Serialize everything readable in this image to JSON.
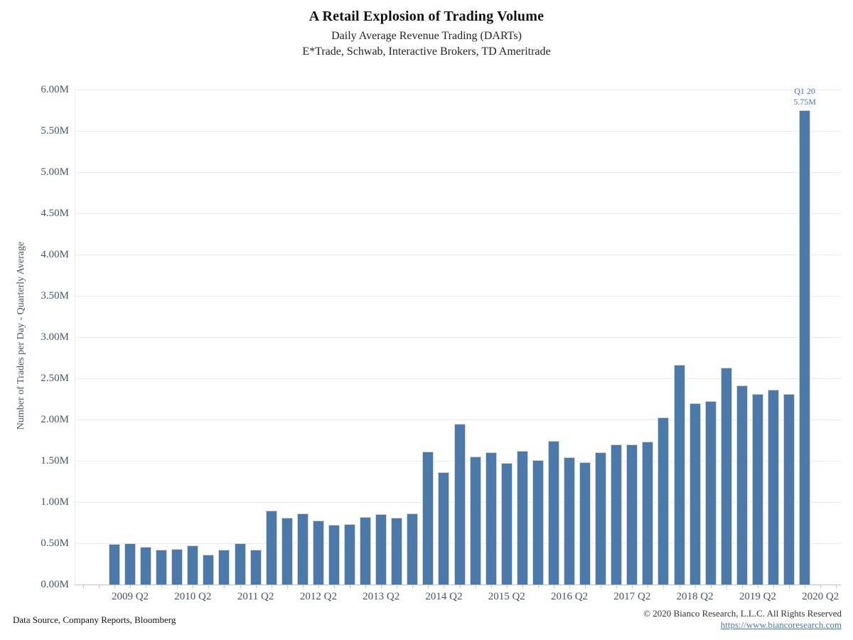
{
  "header": {
    "title": "A Retail Explosion of Trading Volume",
    "subtitle1": "Daily Average Revenue Trading (DARTs)",
    "subtitle2": "E*Trade, Schwab, Interactive Brokers, TD Ameritrade"
  },
  "chart_data": {
    "type": "bar",
    "title": "A Retail Explosion of Trading Volume",
    "xlabel": "",
    "ylabel": "Number of Trades per Day - Quarterly Average",
    "ylim": [
      0,
      6
    ],
    "ytick_step": 0.5,
    "unit": "M",
    "grid": true,
    "bar_color": "#4b79a9",
    "bar_border_color": "#d6d6d6",
    "x": [
      "2009 Q1",
      "2009 Q2",
      "2009 Q3",
      "2009 Q4",
      "2010 Q1",
      "2010 Q2",
      "2010 Q3",
      "2010 Q4",
      "2011 Q1",
      "2011 Q2",
      "2011 Q3",
      "2011 Q4",
      "2012 Q1",
      "2012 Q2",
      "2012 Q3",
      "2012 Q4",
      "2013 Q1",
      "2013 Q2",
      "2013 Q3",
      "2013 Q4",
      "2014 Q1",
      "2014 Q2",
      "2014 Q3",
      "2014 Q4",
      "2015 Q1",
      "2015 Q2",
      "2015 Q3",
      "2015 Q4",
      "2016 Q1",
      "2016 Q2",
      "2016 Q3",
      "2016 Q4",
      "2017 Q1",
      "2017 Q2",
      "2017 Q3",
      "2017 Q4",
      "2018 Q1",
      "2018 Q2",
      "2018 Q3",
      "2018 Q4",
      "2019 Q1",
      "2019 Q2",
      "2019 Q3",
      "2019 Q4",
      "2020 Q1"
    ],
    "values": [
      0.49,
      0.5,
      0.46,
      0.42,
      0.43,
      0.47,
      0.36,
      0.42,
      0.5,
      0.42,
      0.9,
      0.81,
      0.86,
      0.78,
      0.72,
      0.73,
      0.82,
      0.85,
      0.81,
      0.86,
      1.61,
      1.36,
      1.95,
      1.55,
      1.6,
      1.47,
      1.62,
      1.51,
      1.74,
      1.54,
      1.48,
      1.6,
      1.7,
      1.7,
      1.73,
      2.03,
      2.66,
      2.2,
      2.22,
      2.63,
      2.41,
      2.31,
      2.36,
      2.31,
      5.75
    ],
    "ytick_labels": [
      "0.00M",
      "0.50M",
      "1.00M",
      "1.50M",
      "2.00M",
      "2.50M",
      "3.00M",
      "3.50M",
      "4.00M",
      "4.50M",
      "5.00M",
      "5.50M",
      "6.00M"
    ],
    "xtick_labels": [
      "2009 Q2",
      "2010 Q2",
      "2011 Q2",
      "2012 Q2",
      "2013 Q2",
      "2014 Q2",
      "2015 Q2",
      "2016 Q2",
      "2017 Q2",
      "2018 Q2",
      "2019 Q2",
      "2020 Q2"
    ],
    "xtick_indices": [
      1,
      5,
      9,
      13,
      17,
      21,
      25,
      29,
      33,
      37,
      41,
      45
    ],
    "annotation": {
      "target": "2020 Q1",
      "line1": "Q1 20",
      "line2": "5.75M"
    },
    "legend": null
  },
  "footer": {
    "source": "Data Source, Company Reports, Bloomberg",
    "copyright": "© 2020 Bianco Research, L.L.C. All Rights Reserved",
    "link": "https://www.biancoresearch.com"
  }
}
